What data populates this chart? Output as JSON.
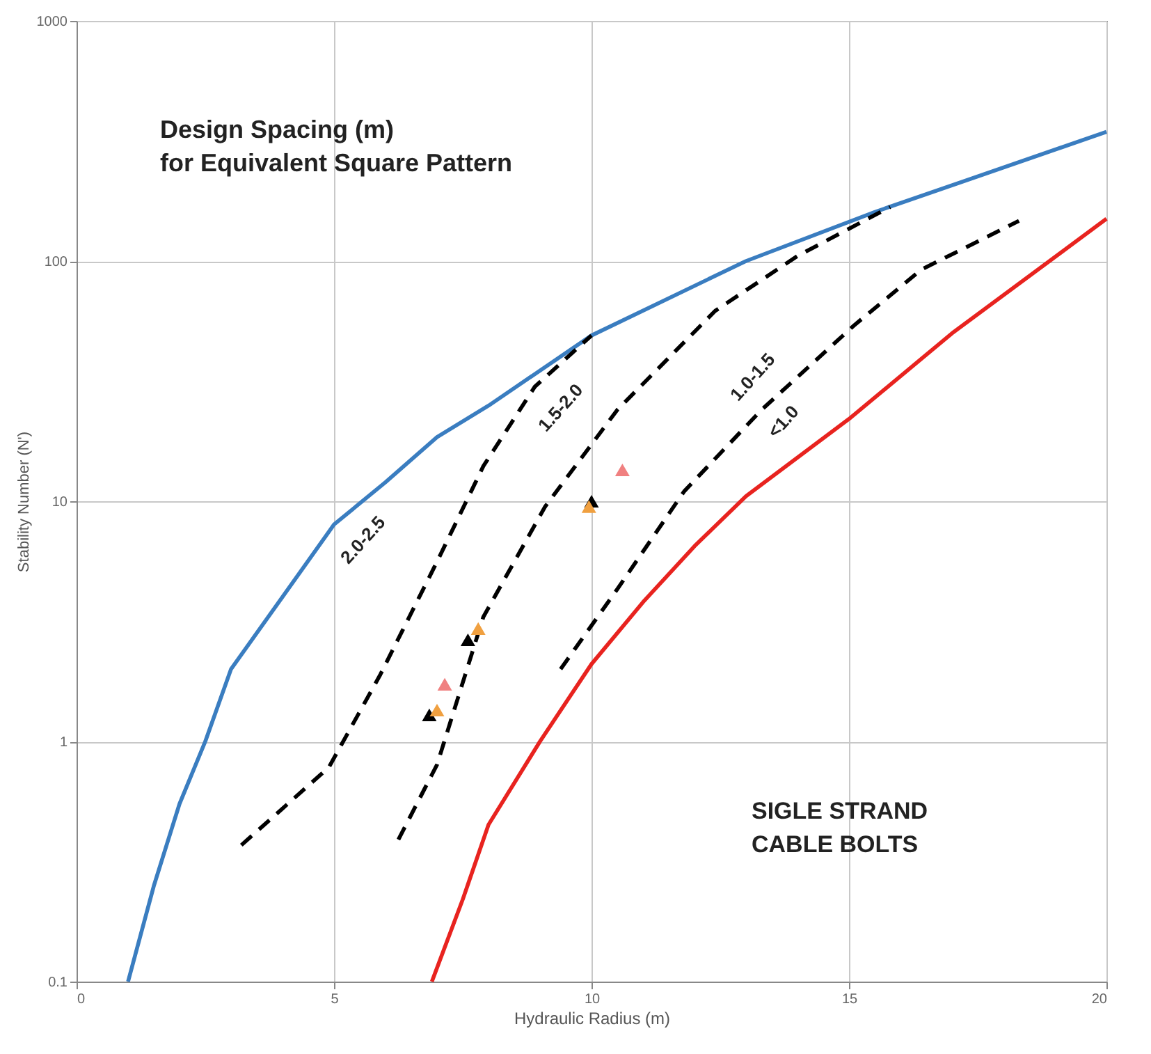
{
  "chart_data": {
    "type": "line",
    "xlabel": "Hydraulic Radius (m)",
    "ylabel": "Stability Number (N')",
    "log": "y",
    "grid": true,
    "xlim": [
      0,
      20
    ],
    "xticks": [
      0,
      5,
      10,
      15,
      20
    ],
    "ylim": [
      0.1,
      1000
    ],
    "yticks": [
      0.1,
      1,
      10,
      100,
      {
        "value": 1000,
        "label": "1000"
      }
    ],
    "series": [
      {
        "color": "#3a7dc0",
        "x": [
          1,
          1.5,
          2,
          2.5,
          3,
          4,
          5,
          6,
          7,
          8,
          10,
          13,
          15.5,
          20
        ],
        "values": [
          0.1,
          0.25,
          0.55,
          1.0,
          2.0,
          4,
          8,
          12,
          18.5,
          25,
          49,
          100,
          160,
          345
        ]
      },
      {
        "color": "#e8231f",
        "x": [
          6.9,
          7.5,
          8,
          9,
          10,
          11,
          12,
          13,
          15,
          17,
          20
        ],
        "values": [
          0.1,
          0.22,
          0.45,
          1.0,
          2.1,
          3.8,
          6.5,
          10.5,
          22,
          50,
          150
        ]
      },
      {
        "color": "#000000",
        "line_style": "dashed",
        "x": [
          3.2,
          4.9,
          5.9,
          7,
          7.9,
          8.9,
          10
        ],
        "values": [
          0.37,
          0.78,
          1.9,
          5.6,
          14,
          30,
          49
        ]
      },
      {
        "color": "#000000",
        "line_style": "dashed",
        "x": [
          6.25,
          7,
          7.9,
          9.1,
          10.5,
          12.4,
          14,
          15.8
        ],
        "values": [
          0.39,
          0.8,
          3.3,
          9.5,
          24,
          62,
          105,
          168
        ]
      },
      {
        "color": "#000000",
        "line_style": "dashed",
        "x": [
          9.4,
          10.5,
          11.8,
          13.3,
          15.1,
          16.4,
          18.3
        ],
        "values": [
          2.0,
          4.3,
          11,
          24,
          54,
          92,
          147
        ]
      },
      {
        "type": "scatter",
        "marker": "triangle",
        "color": "#000000",
        "x": [
          6.85,
          7.6,
          10.0
        ],
        "values": [
          1.29,
          2.65,
          10
        ]
      },
      {
        "type": "scatter",
        "marker": "triangle",
        "color": "#f0a040",
        "x": [
          7.0,
          7.8,
          9.95
        ],
        "values": [
          1.35,
          2.95,
          9.5
        ]
      },
      {
        "type": "scatter",
        "marker": "triangle",
        "color": "#f08080",
        "x": [
          7.15,
          10.6
        ],
        "values": [
          1.73,
          13.5
        ]
      }
    ],
    "annotations": [
      "Design Spacing (m)\nfor Equivalent Square Pattern",
      "SIGLE STRAND\nCABLE BOLTS",
      "2.0-2.5",
      "1.5-2.0",
      "1.0-1.5",
      "<1.0"
    ]
  }
}
